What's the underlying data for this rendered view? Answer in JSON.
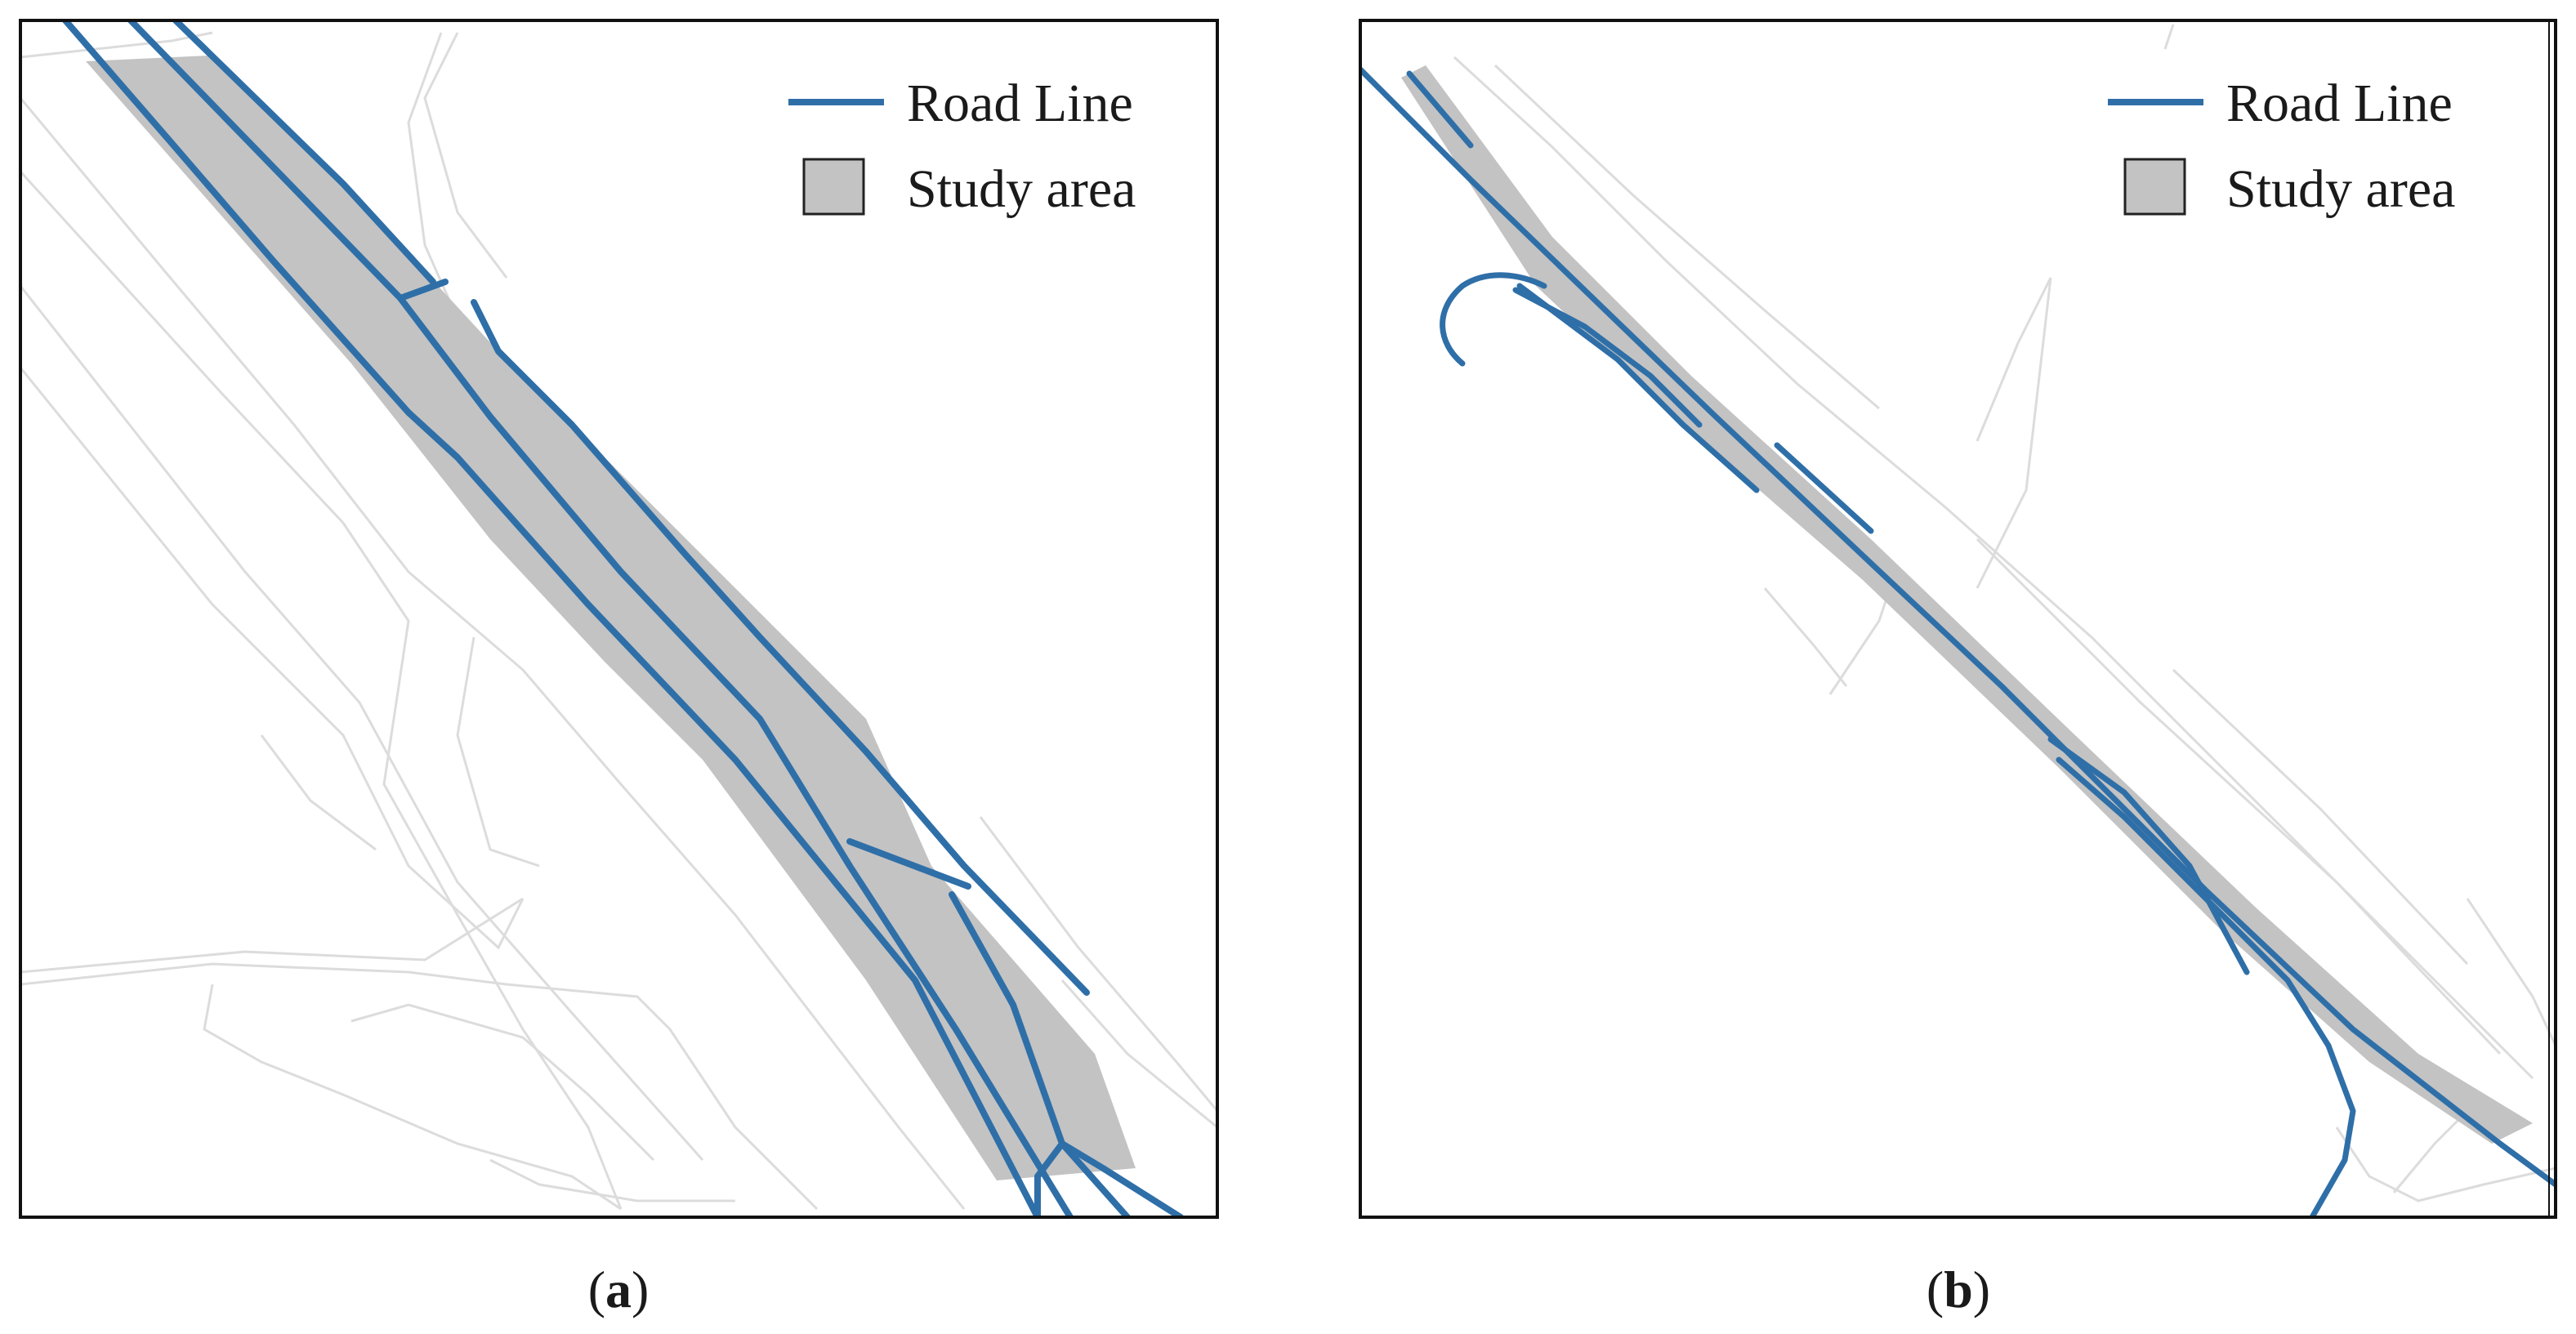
{
  "figure": {
    "legend": {
      "road_line_label": "Road Line",
      "study_area_label": "Study area"
    },
    "panels": [
      {
        "id": "a",
        "caption_letter": "a",
        "caption_open": "(",
        "caption_close": ")"
      },
      {
        "id": "b",
        "caption_letter": "b",
        "caption_open": "(",
        "caption_close": ")"
      }
    ]
  },
  "colors": {
    "road_line": "#2f6fa8",
    "study_area_fill": "#c3c3c3",
    "background_network": "#dcdcdc",
    "frame": "#111111"
  }
}
